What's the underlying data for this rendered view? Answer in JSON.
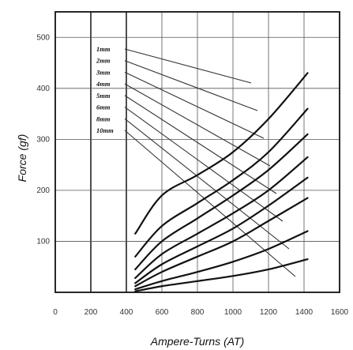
{
  "chart_data": {
    "type": "line",
    "title": "",
    "xlabel": "Ampere-Turns (AT)",
    "ylabel": "Force (gf)",
    "xlim": [
      0,
      1600
    ],
    "ylim": [
      0,
      550
    ],
    "x_ticks": [
      "0",
      "200",
      "400",
      "600",
      "800",
      "1000",
      "1200",
      "1400",
      "1600"
    ],
    "y_ticks": [
      "100",
      "200",
      "300",
      "400",
      "500"
    ],
    "grid": true,
    "x": [
      450,
      600,
      800,
      1000,
      1200,
      1420
    ],
    "series": [
      {
        "name": "1mm",
        "values": [
          115,
          190,
          230,
          275,
          340,
          430
        ]
      },
      {
        "name": "2mm",
        "values": [
          70,
          130,
          175,
          220,
          275,
          360
        ]
      },
      {
        "name": "3mm",
        "values": [
          45,
          100,
          145,
          190,
          240,
          310
        ]
      },
      {
        "name": "4mm",
        "values": [
          28,
          75,
          115,
          155,
          200,
          265
        ]
      },
      {
        "name": "5mm",
        "values": [
          18,
          55,
          90,
          125,
          170,
          225
        ]
      },
      {
        "name": "6mm",
        "values": [
          12,
          40,
          70,
          100,
          140,
          185
        ]
      },
      {
        "name": "8mm",
        "values": [
          6,
          22,
          40,
          60,
          85,
          120
        ]
      },
      {
        "name": "10mm",
        "values": [
          2,
          12,
          22,
          32,
          45,
          65
        ]
      }
    ]
  }
}
